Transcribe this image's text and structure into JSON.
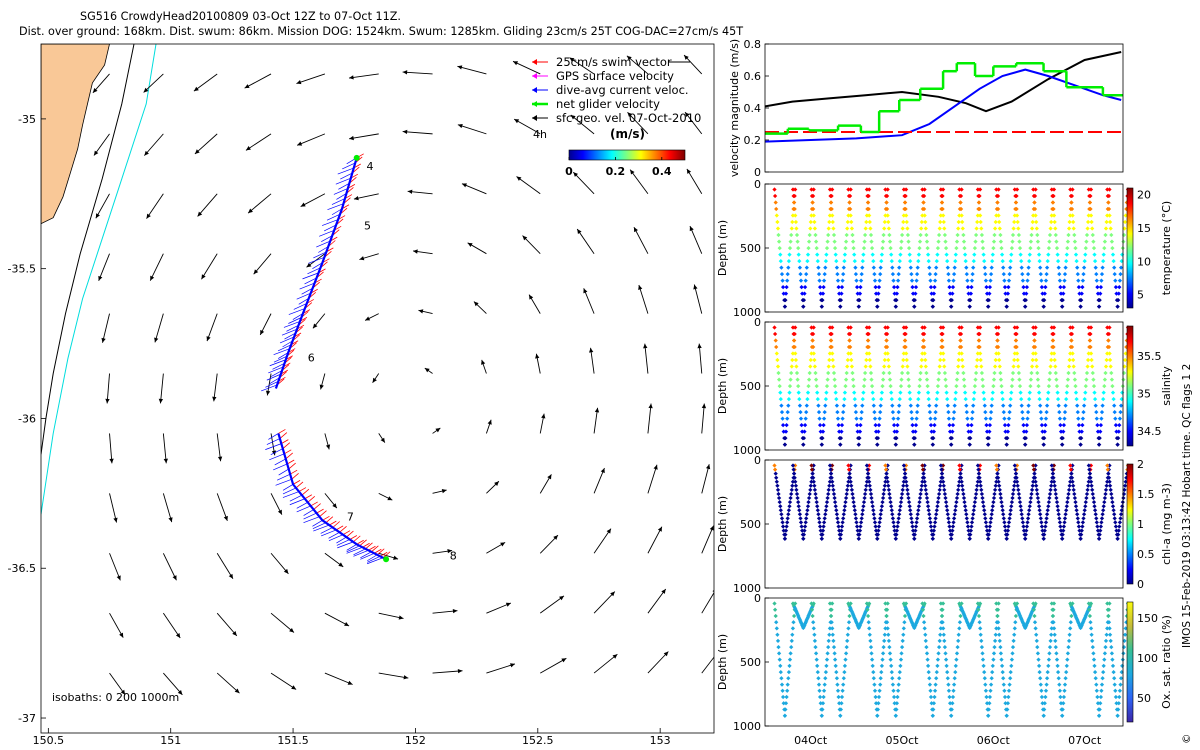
{
  "header": {
    "title_line1": "SG516 CrowdyHead20100809 03-Oct 12Z to 07-Oct 11Z.",
    "title_line2": "Dist. over ground: 168km. Dist. swum: 86km. Mission DOG: 1524km. Swum: 1285km. Gliding 23cm/s 25T COG-DAC=27cm/s 45T"
  },
  "colors": {
    "land": "#f9c897",
    "coast_black": "#000000",
    "isobath_cyan": "#00dddd",
    "swim": "#ff0000",
    "gps": "#ff00ff",
    "dac": "#0000ff",
    "net": "#00ee00",
    "geo": "#000000"
  },
  "chart_data": [
    {
      "type": "map",
      "xlim": [
        150.47,
        153.22
      ],
      "ylim": [
        -37.05,
        -34.75
      ],
      "xticks": [
        "150.5",
        "151",
        "151.5",
        "152",
        "152.5",
        "153"
      ],
      "yticks": [
        "-35",
        "-35.5",
        "-36",
        "-36.5",
        "-37"
      ],
      "legend": {
        "placement": "top-right",
        "entries": [
          {
            "label": "25cm/s swim vector",
            "color": "#ff0000"
          },
          {
            "label": "GPS surface velocity",
            "color": "#ff00ff"
          },
          {
            "label": "dive-avg current veloc.",
            "color": "#0000ff"
          },
          {
            "label": "net glider velocity",
            "color": "#00ee00"
          },
          {
            "label": "sfc geo. vel. 07-Oct-2010",
            "color": "#000000"
          }
        ]
      },
      "colorbar": {
        "label": "(m/s)",
        "ticks": [
          "0",
          "0.2",
          "0.4"
        ],
        "range": [
          0,
          0.5
        ]
      },
      "time_label": "4h",
      "isobath_label": "isobaths: 0   200  1000m",
      "track_labels": [
        {
          "text": "4",
          "lon": 151.8,
          "lat": -35.17
        },
        {
          "text": "5",
          "lon": 151.79,
          "lat": -35.37
        },
        {
          "text": "6",
          "lon": 151.56,
          "lat": -35.81
        },
        {
          "text": "7",
          "lon": 151.72,
          "lat": -36.34
        },
        {
          "text": "8",
          "lon": 152.14,
          "lat": -36.47
        }
      ],
      "track": [
        [
          151.76,
          -35.13
        ],
        [
          151.7,
          -35.3
        ],
        [
          151.62,
          -35.48
        ],
        [
          151.54,
          -35.65
        ],
        [
          151.48,
          -35.78
        ],
        [
          151.43,
          -35.9
        ],
        [
          151.44,
          -36.05
        ],
        [
          151.5,
          -36.22
        ],
        [
          151.62,
          -36.34
        ],
        [
          151.76,
          -36.42
        ],
        [
          151.88,
          -36.47
        ]
      ],
      "track_break": 5,
      "coast_land": [
        [
          150.47,
          -34.75
        ],
        [
          150.75,
          -34.75
        ],
        [
          150.73,
          -34.82
        ],
        [
          150.68,
          -34.88
        ],
        [
          150.66,
          -34.95
        ],
        [
          150.64,
          -35.02
        ],
        [
          150.62,
          -35.1
        ],
        [
          150.59,
          -35.18
        ],
        [
          150.56,
          -35.26
        ],
        [
          150.52,
          -35.33
        ],
        [
          150.47,
          -35.35
        ]
      ],
      "isobath_0": [
        [
          150.85,
          -34.75
        ],
        [
          150.8,
          -34.95
        ],
        [
          150.72,
          -35.2
        ],
        [
          150.63,
          -35.45
        ],
        [
          150.57,
          -35.65
        ],
        [
          150.52,
          -35.85
        ],
        [
          150.49,
          -36.0
        ],
        [
          150.47,
          -36.12
        ]
      ],
      "isobath_cyan": [
        [
          150.94,
          -34.75
        ],
        [
          150.9,
          -34.95
        ],
        [
          150.8,
          -35.2
        ],
        [
          150.72,
          -35.4
        ],
        [
          150.64,
          -35.6
        ],
        [
          150.58,
          -35.8
        ],
        [
          150.52,
          -36.05
        ],
        [
          150.47,
          -36.32
        ]
      ]
    },
    {
      "type": "line",
      "ylabel": "velocity magnitude (m/s)",
      "ylim": [
        0,
        0.8
      ],
      "yticks": [
        "0",
        "0.2",
        "0.4",
        "0.6",
        "0.8"
      ],
      "xlim": [
        3.5,
        7.42
      ],
      "series": [
        {
          "color": "#000000",
          "x": [
            3.5,
            3.8,
            4.2,
            4.6,
            5.0,
            5.4,
            5.7,
            5.92,
            6.2,
            6.6,
            7.0,
            7.4
          ],
          "y": [
            0.41,
            0.44,
            0.46,
            0.48,
            0.5,
            0.47,
            0.43,
            0.38,
            0.44,
            0.58,
            0.7,
            0.75
          ]
        },
        {
          "color": "#0000ff",
          "x": [
            3.5,
            4.0,
            4.5,
            5.0,
            5.3,
            5.6,
            5.85,
            6.1,
            6.35,
            6.6,
            6.9,
            7.2,
            7.4
          ],
          "y": [
            0.19,
            0.2,
            0.21,
            0.23,
            0.3,
            0.42,
            0.52,
            0.6,
            0.64,
            0.6,
            0.54,
            0.48,
            0.45
          ]
        },
        {
          "color": "#ff0000",
          "dashed": true,
          "x": [
            3.5,
            7.42
          ],
          "y": [
            0.25,
            0.25
          ]
        }
      ],
      "net_segments": [
        [
          3.5,
          3.75,
          0.24
        ],
        [
          3.75,
          3.98,
          0.27
        ],
        [
          3.98,
          4.3,
          0.26
        ],
        [
          4.3,
          4.55,
          0.29
        ],
        [
          4.55,
          4.75,
          0.25
        ],
        [
          4.75,
          4.97,
          0.38
        ],
        [
          4.97,
          5.2,
          0.45
        ],
        [
          5.2,
          5.45,
          0.52
        ],
        [
          5.45,
          5.6,
          0.63
        ],
        [
          5.6,
          5.8,
          0.68
        ],
        [
          5.8,
          6.0,
          0.6
        ],
        [
          6.0,
          6.25,
          0.66
        ],
        [
          6.25,
          6.55,
          0.68
        ],
        [
          6.55,
          6.8,
          0.63
        ],
        [
          6.8,
          7.2,
          0.53
        ],
        [
          7.2,
          7.42,
          0.48
        ]
      ]
    },
    {
      "type": "scatter",
      "ylabel": "Depth (m)",
      "cblabel": "temperature (°C)",
      "yticks": [
        "0",
        "500",
        "1000"
      ],
      "ylim": [
        1000,
        0
      ],
      "cbticks": [
        "5",
        "10",
        "15",
        "20"
      ],
      "cbrange": [
        3,
        21
      ]
    },
    {
      "type": "scatter",
      "ylabel": "Depth (m)",
      "cblabel": "salinity",
      "yticks": [
        "0",
        "500",
        "1000"
      ],
      "ylim": [
        1000,
        0
      ],
      "cbticks": [
        "34.5",
        "35",
        "35.5"
      ],
      "cbrange": [
        34.3,
        35.9
      ]
    },
    {
      "type": "scatter",
      "ylabel": "Depth (m)",
      "cblabel": "chl-a (mg m-3)",
      "yticks": [
        "0",
        "500",
        "1000"
      ],
      "ylim": [
        1000,
        0
      ],
      "cbticks": [
        "0",
        "0.5",
        "1",
        "1.5",
        "2"
      ],
      "cbrange": [
        0,
        2
      ],
      "side_note": "IMOS 15-Feb-2019 03:13:42 Hobart time. QC flags 1  2"
    },
    {
      "type": "scatter",
      "ylabel": "Depth (m)",
      "cblabel": "Ox. sat. ratio (%)",
      "yticks": [
        "0",
        "500",
        "1000"
      ],
      "ylim": [
        1000,
        0
      ],
      "cbticks": [
        "50",
        "100",
        "150"
      ],
      "cbrange": [
        20,
        170
      ],
      "xticks": [
        "04Oct",
        "05Oct",
        "06Oct",
        "07Oct"
      ],
      "side_note": "©"
    }
  ]
}
